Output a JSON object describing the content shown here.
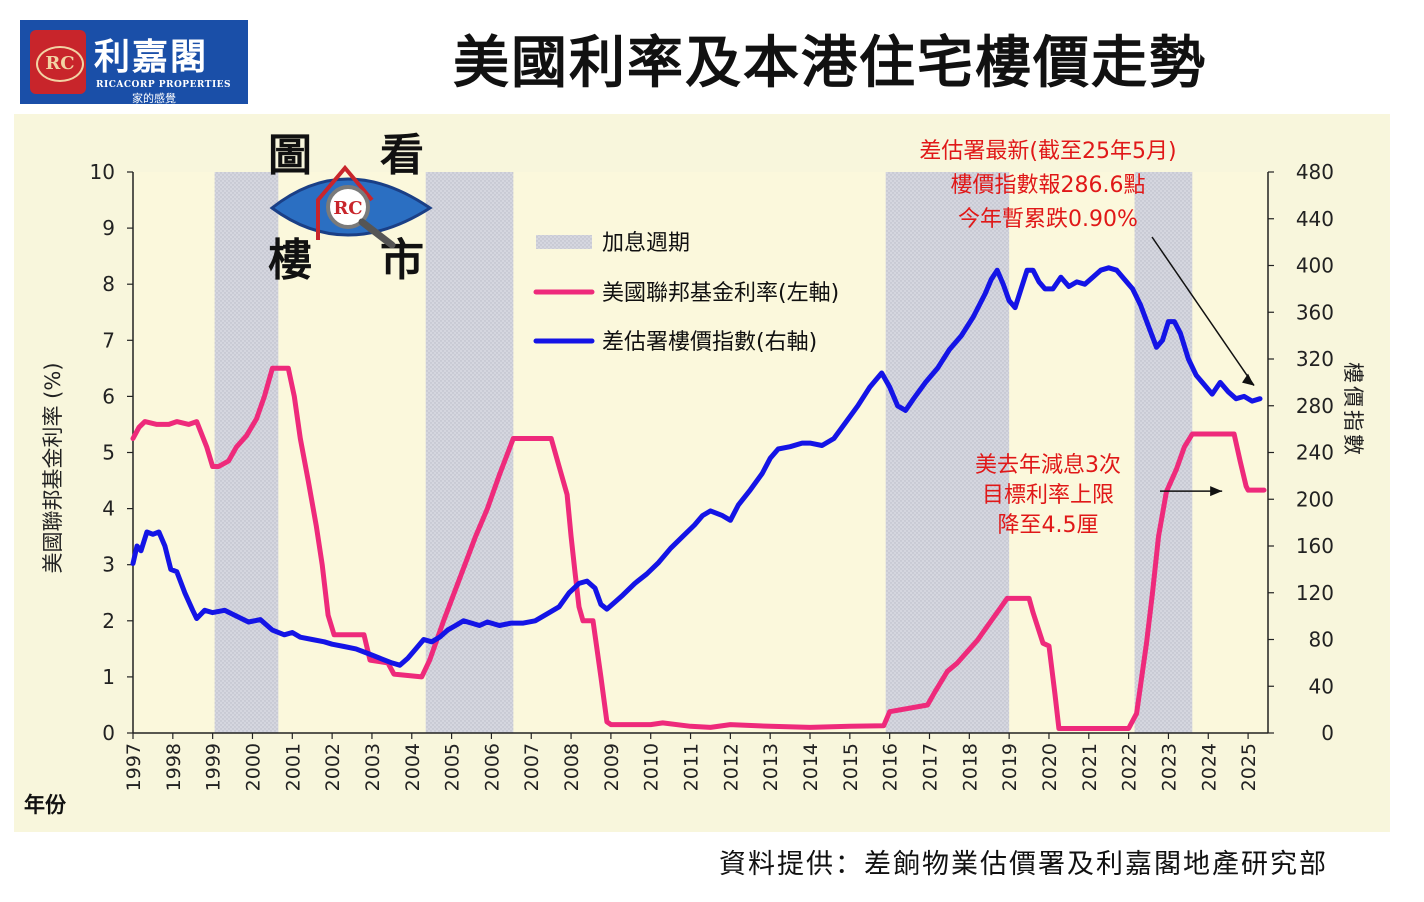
{
  "logo": {
    "seal_text": "RC",
    "name": "利嘉閣",
    "english": "RICACORP PROPERTIES",
    "tagline": "家的感覺"
  },
  "title": "美國利率及本港住宅樓價走勢",
  "source": "資料提供：差餉物業估價署及利嘉閣地產研究部",
  "colors": {
    "plot_bg": "#fbf8dc",
    "frame_bg": "#f8f6dc",
    "hike_band": "#d5d6df",
    "rate_line": "#ee2a7b",
    "index_line": "#1414e6",
    "annotation": "#e01818",
    "logo_bg": "#1a4fa8"
  },
  "icons": {
    "chart_logo": "eye-magnifier-icon"
  },
  "chart_data": {
    "type": "line",
    "x_axis": {
      "label": "年份",
      "range": [
        1997,
        2025.5
      ],
      "ticks": [
        "1997",
        "1998",
        "1999",
        "2000",
        "2001",
        "2002",
        "2003",
        "2004",
        "2005",
        "2006",
        "2007",
        "2008",
        "2009",
        "2010",
        "2011",
        "2012",
        "2013",
        "2014",
        "2015",
        "2016",
        "2017",
        "2018",
        "2019",
        "2020",
        "2021",
        "2022",
        "2023",
        "2024",
        "2025"
      ]
    },
    "y_left": {
      "label": "美國聯邦基金利率 (%)",
      "range": [
        0,
        10
      ],
      "ticks": [
        "0",
        "1",
        "2",
        "3",
        "4",
        "5",
        "6",
        "7",
        "8",
        "9",
        "10"
      ]
    },
    "y_right": {
      "label": "樓價指數",
      "range": [
        0,
        480
      ],
      "ticks": [
        "0",
        "40",
        "80",
        "120",
        "160",
        "200",
        "240",
        "280",
        "320",
        "360",
        "400",
        "440",
        "480"
      ]
    },
    "grid": false,
    "legend_position": "top-center",
    "logo_text": [
      "圖",
      "看",
      "樓",
      "市"
    ],
    "legend": [
      {
        "key": "bands",
        "label": "加息週期"
      },
      {
        "key": "rate",
        "label": "美國聯邦基金利率(左軸)"
      },
      {
        "key": "index",
        "label": "差估署樓價指數(右軸)"
      }
    ],
    "hike_periods": [
      [
        1999.05,
        2000.65
      ],
      [
        2004.35,
        2006.55
      ],
      [
        2015.9,
        2019.0
      ],
      [
        2022.15,
        2023.6
      ]
    ],
    "series": [
      {
        "key": "rate",
        "name": "美國聯邦基金利率",
        "axis": "left",
        "points": [
          [
            1997.0,
            5.25
          ],
          [
            1997.15,
            5.45
          ],
          [
            1997.3,
            5.55
          ],
          [
            1997.6,
            5.5
          ],
          [
            1997.9,
            5.5
          ],
          [
            1998.1,
            5.55
          ],
          [
            1998.4,
            5.5
          ],
          [
            1998.6,
            5.55
          ],
          [
            1998.85,
            5.1
          ],
          [
            1999.0,
            4.75
          ],
          [
            1999.15,
            4.75
          ],
          [
            1999.4,
            4.85
          ],
          [
            1999.6,
            5.1
          ],
          [
            1999.85,
            5.3
          ],
          [
            2000.1,
            5.6
          ],
          [
            2000.3,
            6.0
          ],
          [
            2000.5,
            6.5
          ],
          [
            2000.9,
            6.5
          ],
          [
            2001.05,
            6.0
          ],
          [
            2001.2,
            5.25
          ],
          [
            2001.4,
            4.5
          ],
          [
            2001.6,
            3.7
          ],
          [
            2001.75,
            3.0
          ],
          [
            2001.9,
            2.1
          ],
          [
            2002.05,
            1.75
          ],
          [
            2002.8,
            1.75
          ],
          [
            2002.95,
            1.3
          ],
          [
            2003.4,
            1.25
          ],
          [
            2003.55,
            1.05
          ],
          [
            2004.25,
            1.0
          ],
          [
            2004.45,
            1.3
          ],
          [
            2004.8,
            2.0
          ],
          [
            2005.2,
            2.75
          ],
          [
            2005.6,
            3.5
          ],
          [
            2005.9,
            4.0
          ],
          [
            2006.2,
            4.6
          ],
          [
            2006.55,
            5.25
          ],
          [
            2007.5,
            5.25
          ],
          [
            2007.7,
            4.75
          ],
          [
            2007.9,
            4.25
          ],
          [
            2008.0,
            3.5
          ],
          [
            2008.1,
            2.85
          ],
          [
            2008.2,
            2.25
          ],
          [
            2008.3,
            2.0
          ],
          [
            2008.55,
            2.0
          ],
          [
            2008.75,
            1.0
          ],
          [
            2008.9,
            0.2
          ],
          [
            2009.0,
            0.15
          ],
          [
            2010.0,
            0.15
          ],
          [
            2010.3,
            0.18
          ],
          [
            2011.0,
            0.12
          ],
          [
            2011.5,
            0.1
          ],
          [
            2012.0,
            0.15
          ],
          [
            2013.0,
            0.12
          ],
          [
            2014.0,
            0.1
          ],
          [
            2015.0,
            0.12
          ],
          [
            2015.85,
            0.13
          ],
          [
            2016.0,
            0.38
          ],
          [
            2016.95,
            0.5
          ],
          [
            2017.15,
            0.75
          ],
          [
            2017.45,
            1.1
          ],
          [
            2017.7,
            1.25
          ],
          [
            2017.95,
            1.45
          ],
          [
            2018.2,
            1.65
          ],
          [
            2018.45,
            1.9
          ],
          [
            2018.7,
            2.15
          ],
          [
            2018.95,
            2.4
          ],
          [
            2019.5,
            2.4
          ],
          [
            2019.6,
            2.15
          ],
          [
            2019.85,
            1.6
          ],
          [
            2020.0,
            1.55
          ],
          [
            2020.15,
            0.7
          ],
          [
            2020.25,
            0.08
          ],
          [
            2021.0,
            0.08
          ],
          [
            2022.0,
            0.08
          ],
          [
            2022.2,
            0.35
          ],
          [
            2022.45,
            1.6
          ],
          [
            2022.6,
            2.5
          ],
          [
            2022.75,
            3.5
          ],
          [
            2022.95,
            4.3
          ],
          [
            2023.2,
            4.7
          ],
          [
            2023.4,
            5.1
          ],
          [
            2023.6,
            5.33
          ],
          [
            2024.65,
            5.33
          ],
          [
            2024.8,
            4.85
          ],
          [
            2024.95,
            4.4
          ],
          [
            2025.0,
            4.33
          ],
          [
            2025.4,
            4.33
          ]
        ]
      },
      {
        "key": "index",
        "name": "差估署樓價指數",
        "axis": "right",
        "points": [
          [
            1997.0,
            145
          ],
          [
            1997.1,
            160
          ],
          [
            1997.2,
            156
          ],
          [
            1997.35,
            172
          ],
          [
            1997.5,
            170
          ],
          [
            1997.65,
            172
          ],
          [
            1997.8,
            160
          ],
          [
            1997.95,
            140
          ],
          [
            1998.1,
            138
          ],
          [
            1998.3,
            120
          ],
          [
            1998.5,
            105
          ],
          [
            1998.6,
            98
          ],
          [
            1998.8,
            105
          ],
          [
            1999.0,
            103
          ],
          [
            1999.3,
            105
          ],
          [
            1999.6,
            100
          ],
          [
            1999.9,
            95
          ],
          [
            2000.2,
            97
          ],
          [
            2000.5,
            88
          ],
          [
            2000.8,
            84
          ],
          [
            2001.0,
            86
          ],
          [
            2001.2,
            82
          ],
          [
            2001.5,
            80
          ],
          [
            2001.8,
            78
          ],
          [
            2002.0,
            76
          ],
          [
            2002.3,
            74
          ],
          [
            2002.6,
            72
          ],
          [
            2002.9,
            68
          ],
          [
            2003.2,
            64
          ],
          [
            2003.5,
            60
          ],
          [
            2003.7,
            58
          ],
          [
            2003.9,
            64
          ],
          [
            2004.1,
            72
          ],
          [
            2004.3,
            80
          ],
          [
            2004.5,
            78
          ],
          [
            2004.7,
            82
          ],
          [
            2004.9,
            88
          ],
          [
            2005.1,
            92
          ],
          [
            2005.3,
            96
          ],
          [
            2005.5,
            94
          ],
          [
            2005.7,
            92
          ],
          [
            2005.9,
            95
          ],
          [
            2006.2,
            92
          ],
          [
            2006.5,
            94
          ],
          [
            2006.8,
            94
          ],
          [
            2007.1,
            96
          ],
          [
            2007.4,
            102
          ],
          [
            2007.7,
            108
          ],
          [
            2007.95,
            120
          ],
          [
            2008.2,
            128
          ],
          [
            2008.4,
            130
          ],
          [
            2008.6,
            124
          ],
          [
            2008.75,
            110
          ],
          [
            2008.9,
            106
          ],
          [
            2009.1,
            112
          ],
          [
            2009.3,
            118
          ],
          [
            2009.6,
            128
          ],
          [
            2009.9,
            136
          ],
          [
            2010.2,
            146
          ],
          [
            2010.5,
            158
          ],
          [
            2010.8,
            168
          ],
          [
            2011.1,
            178
          ],
          [
            2011.3,
            186
          ],
          [
            2011.5,
            190
          ],
          [
            2011.8,
            186
          ],
          [
            2012.0,
            182
          ],
          [
            2012.2,
            195
          ],
          [
            2012.5,
            208
          ],
          [
            2012.8,
            222
          ],
          [
            2013.0,
            235
          ],
          [
            2013.2,
            243
          ],
          [
            2013.5,
            245
          ],
          [
            2013.8,
            248
          ],
          [
            2014.0,
            248
          ],
          [
            2014.3,
            246
          ],
          [
            2014.6,
            252
          ],
          [
            2014.9,
            266
          ],
          [
            2015.2,
            280
          ],
          [
            2015.5,
            296
          ],
          [
            2015.8,
            308
          ],
          [
            2016.0,
            296
          ],
          [
            2016.2,
            280
          ],
          [
            2016.4,
            276
          ],
          [
            2016.6,
            286
          ],
          [
            2016.9,
            300
          ],
          [
            2017.2,
            312
          ],
          [
            2017.5,
            328
          ],
          [
            2017.8,
            340
          ],
          [
            2018.1,
            356
          ],
          [
            2018.4,
            376
          ],
          [
            2018.55,
            388
          ],
          [
            2018.7,
            396
          ],
          [
            2018.85,
            384
          ],
          [
            2019.0,
            370
          ],
          [
            2019.15,
            364
          ],
          [
            2019.3,
            380
          ],
          [
            2019.45,
            396
          ],
          [
            2019.6,
            396
          ],
          [
            2019.75,
            386
          ],
          [
            2019.9,
            380
          ],
          [
            2020.1,
            380
          ],
          [
            2020.3,
            390
          ],
          [
            2020.5,
            382
          ],
          [
            2020.7,
            386
          ],
          [
            2020.9,
            384
          ],
          [
            2021.1,
            390
          ],
          [
            2021.3,
            396
          ],
          [
            2021.5,
            398
          ],
          [
            2021.7,
            396
          ],
          [
            2021.9,
            388
          ],
          [
            2022.1,
            380
          ],
          [
            2022.3,
            366
          ],
          [
            2022.5,
            348
          ],
          [
            2022.7,
            330
          ],
          [
            2022.85,
            336
          ],
          [
            2023.0,
            352
          ],
          [
            2023.15,
            352
          ],
          [
            2023.3,
            342
          ],
          [
            2023.5,
            320
          ],
          [
            2023.7,
            306
          ],
          [
            2023.9,
            298
          ],
          [
            2024.1,
            290
          ],
          [
            2024.3,
            300
          ],
          [
            2024.5,
            292
          ],
          [
            2024.7,
            286
          ],
          [
            2024.9,
            288
          ],
          [
            2025.1,
            284
          ],
          [
            2025.3,
            286
          ]
        ]
      }
    ],
    "annotations": [
      {
        "id": "latest",
        "lines": [
          "差估署最新(截至25年5月)",
          "樓價指數報286.6點",
          "今年暫累跌0.90%"
        ],
        "points_to": [
          2025.35,
          287
        ],
        "axis": "right"
      },
      {
        "id": "cut",
        "lines": [
          "美去年減息3次",
          "目標利率上限",
          "降至4.5厘"
        ],
        "points_to": [
          2024.6,
          4.33
        ],
        "axis": "left"
      }
    ]
  }
}
